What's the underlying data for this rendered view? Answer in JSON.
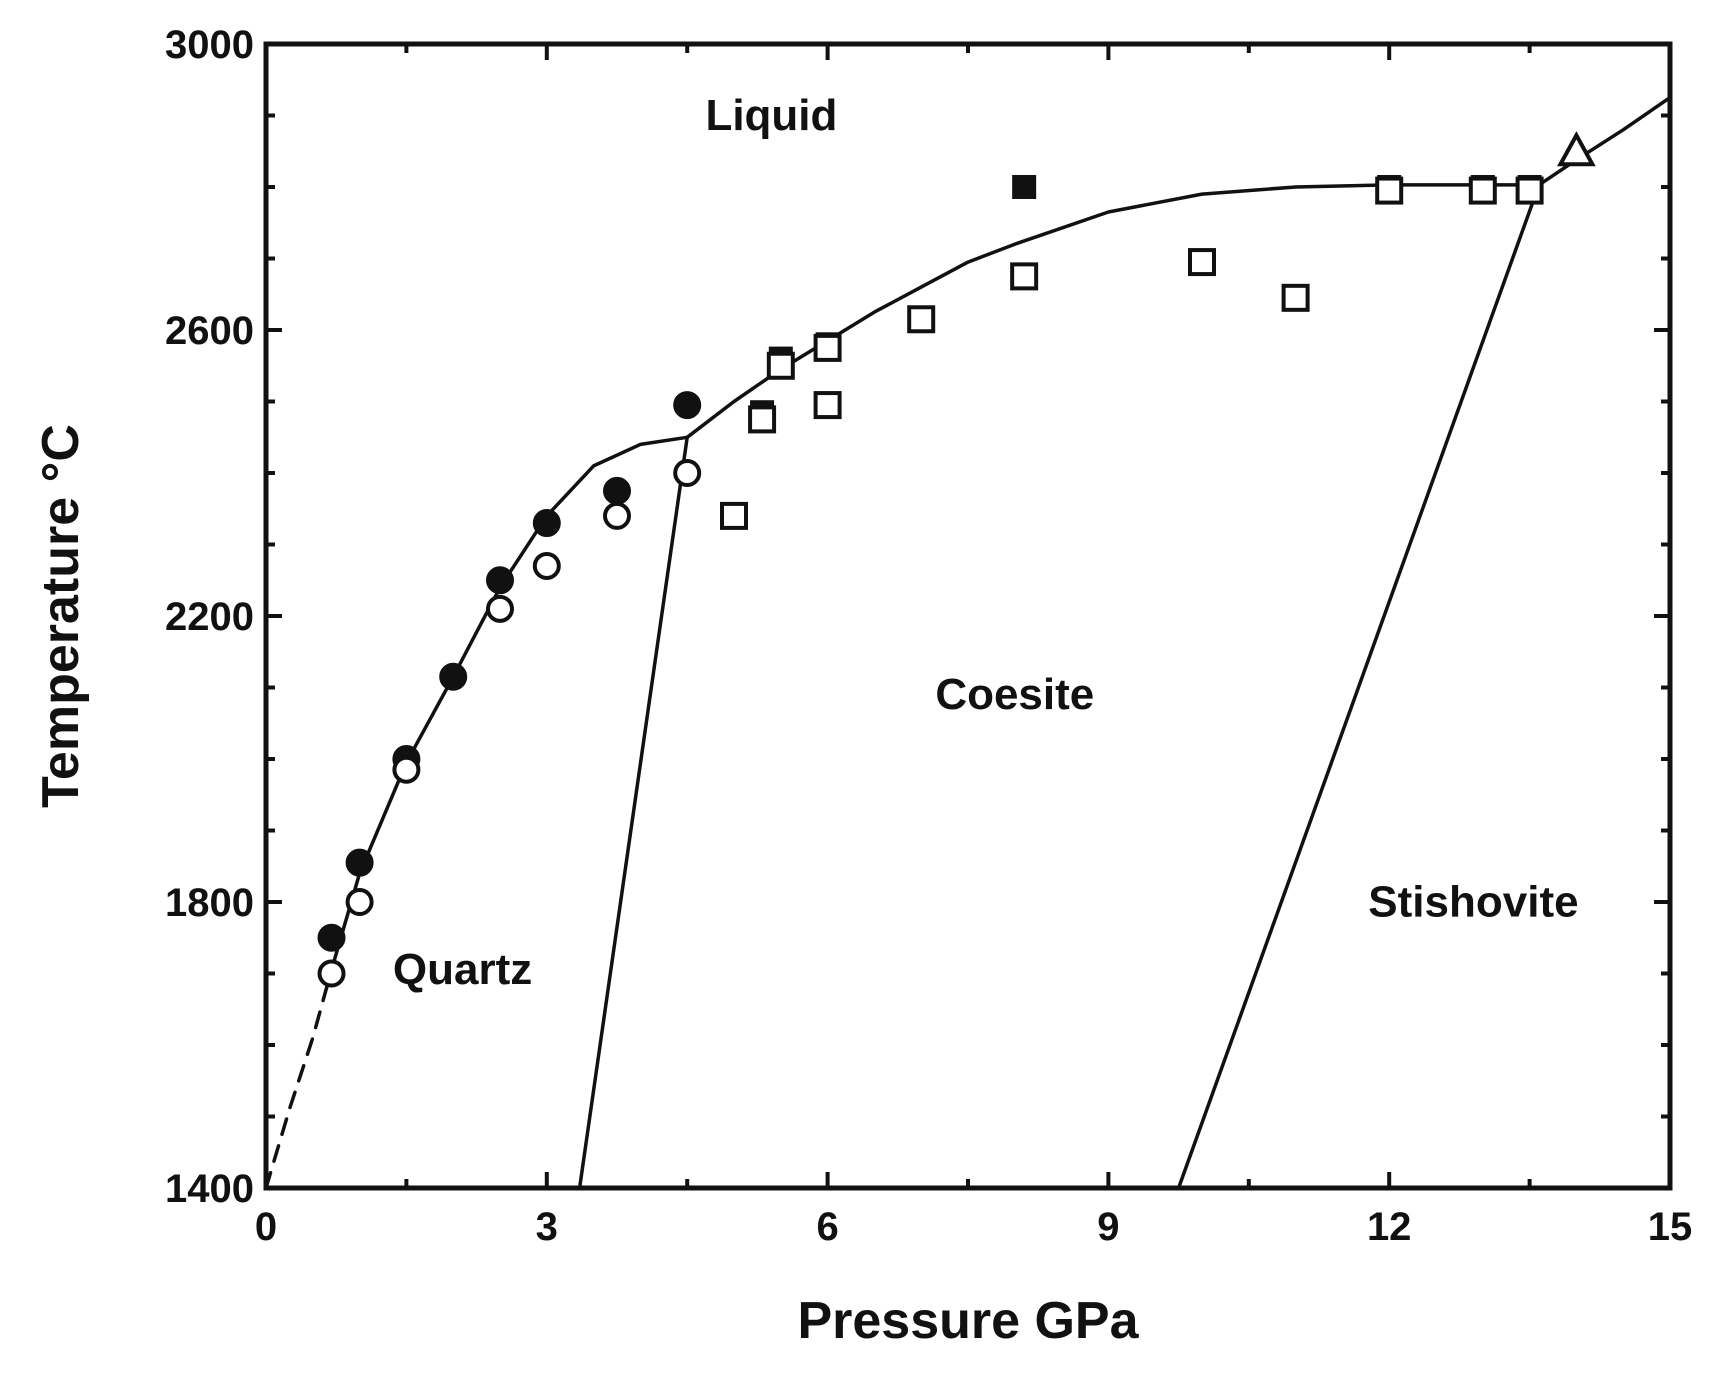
{
  "chart_data": {
    "type": "scatter",
    "xlabel": "Pressure GPa",
    "ylabel": "Temperature °C",
    "xlim": [
      0,
      15
    ],
    "ylim": [
      1400,
      3000
    ],
    "xticks": [
      0,
      3,
      6,
      9,
      12,
      15
    ],
    "yticks": [
      1400,
      1800,
      2200,
      2600,
      3000
    ],
    "grid": false,
    "region_labels": [
      {
        "text": "Liquid",
        "x": 5.4,
        "y": 2880
      },
      {
        "text": "Coesite",
        "x": 8.0,
        "y": 2070
      },
      {
        "text": "Quartz",
        "x": 2.1,
        "y": 1685
      },
      {
        "text": "Stishovite",
        "x": 12.9,
        "y": 1780
      }
    ],
    "series": [
      {
        "marker": "filled-circle",
        "x": [
          0.7,
          1.0,
          1.5,
          2.0,
          2.5,
          3.0,
          3.75,
          4.5
        ],
        "y": [
          1750,
          1855,
          2000,
          2115,
          2250,
          2330,
          2375,
          2495
        ]
      },
      {
        "marker": "open-circle",
        "x": [
          0.7,
          1.0,
          1.5,
          2.5,
          3.0,
          3.75,
          4.5
        ],
        "y": [
          1700,
          1800,
          1985,
          2210,
          2270,
          2340,
          2400
        ]
      },
      {
        "marker": "filled-square",
        "x": [
          5.3,
          5.5,
          6.0,
          8.1,
          12.0,
          13.0,
          13.5
        ],
        "y": [
          2485,
          2560,
          2580,
          2800,
          2800,
          2800,
          2800
        ]
      },
      {
        "marker": "open-square",
        "x": [
          5.0,
          5.3,
          5.5,
          6.0,
          6.0,
          7.0,
          8.1,
          10.0,
          11.0,
          12.0,
          13.0,
          13.5
        ],
        "y": [
          2340,
          2475,
          2550,
          2575,
          2495,
          2615,
          2675,
          2695,
          2645,
          2795,
          2795,
          2795
        ]
      },
      {
        "marker": "open-triangle",
        "x": [
          14.0
        ],
        "y": [
          2850
        ]
      }
    ],
    "phase_boundaries": [
      {
        "style": "dashed",
        "x": [
          0.0,
          0.25,
          0.5,
          0.7
        ],
        "y": [
          1400,
          1510,
          1610,
          1705
        ]
      },
      {
        "style": "solid",
        "x": [
          0.7,
          1.0,
          1.5,
          2.0,
          2.5,
          3.0,
          3.5,
          4.0,
          4.5
        ],
        "y": [
          1705,
          1840,
          1995,
          2115,
          2240,
          2340,
          2410,
          2440,
          2450
        ]
      },
      {
        "style": "solid",
        "x": [
          4.5,
          5.0,
          5.5,
          6.0,
          6.5,
          7.0,
          7.5,
          8.0,
          9.0,
          10.0,
          11.0,
          12.0,
          13.0,
          13.6
        ],
        "y": [
          2450,
          2500,
          2545,
          2585,
          2625,
          2660,
          2695,
          2720,
          2765,
          2790,
          2800,
          2803,
          2803,
          2803
        ]
      },
      {
        "style": "solid",
        "x": [
          13.6,
          14.0,
          14.5,
          15.0
        ],
        "y": [
          2803,
          2838,
          2880,
          2925
        ]
      },
      {
        "style": "solid",
        "x": [
          3.35,
          4.5
        ],
        "y": [
          1400,
          2450
        ]
      },
      {
        "style": "solid",
        "x": [
          9.75,
          13.6
        ],
        "y": [
          1400,
          2803
        ]
      }
    ]
  }
}
